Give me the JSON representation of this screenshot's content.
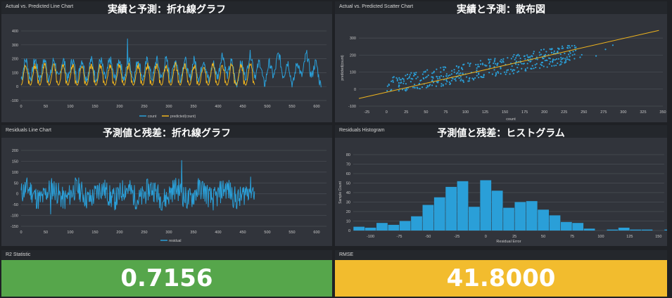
{
  "colors": {
    "actual": "#2a9fd8",
    "predicted": "#f0b51e",
    "grid": "#4a4e56",
    "axis_text": "#c8c8c8",
    "green": "#56a64b",
    "yellow": "#f2bc2e"
  },
  "panels": {
    "line": {
      "title": "Actual vs. Predicted Line Chart",
      "overlay": "実績と予測：折れ線グラフ"
    },
    "scatter": {
      "title": "Actual vs. Predicted Scatter Chart",
      "overlay": "実績と予測：散布図"
    },
    "residual_line": {
      "title": "Residuals Line Chart",
      "overlay": "予測値と残差：折れ線グラフ"
    },
    "histogram": {
      "title": "Residuals Histogram",
      "overlay": "予測値と残差：ヒストグラム"
    },
    "r2": {
      "title": "R2 Statistic",
      "value": "0.7156"
    },
    "rmse": {
      "title": "RMSE",
      "value": "41.8000"
    }
  },
  "chart_data": [
    {
      "type": "line",
      "xlim": [
        0,
        620
      ],
      "ylim": [
        -100,
        400
      ],
      "xticks": [
        0,
        50,
        100,
        150,
        200,
        250,
        300,
        350,
        400,
        450,
        500,
        550,
        600
      ],
      "yticks": [
        -100,
        0,
        100,
        200,
        300,
        400
      ],
      "series": [
        {
          "name": "count",
          "length": 610,
          "generator": "actual"
        },
        {
          "name": "predicted(count)",
          "length": 475,
          "generator": "predicted"
        }
      ]
    },
    {
      "type": "scatter",
      "xlim": [
        -35,
        350
      ],
      "ylim": [
        -100,
        350
      ],
      "xticks": [
        -25,
        0,
        25,
        50,
        75,
        100,
        125,
        150,
        175,
        200,
        225,
        250,
        275,
        300,
        325,
        350
      ],
      "yticks": [
        -100,
        0,
        100,
        200,
        300
      ],
      "xlabel": "count",
      "ylabel": "predicted(count)",
      "fit_line": {
        "x": [
          -35,
          345
        ],
        "y": [
          -55,
          345
        ]
      }
    },
    {
      "type": "line",
      "xlim": [
        0,
        620
      ],
      "ylim": [
        -150,
        200
      ],
      "xticks": [
        0,
        50,
        100,
        150,
        200,
        250,
        300,
        350,
        400,
        450,
        500,
        550,
        600
      ],
      "yticks": [
        -150,
        -100,
        -50,
        0,
        50,
        100,
        150,
        200
      ],
      "series": [
        {
          "name": "residual",
          "length": 475,
          "generator": "residual"
        }
      ]
    },
    {
      "type": "bar",
      "xlabel": "Residual Error",
      "ylabel": "Sample Count",
      "xlim": [
        -115,
        155
      ],
      "ylim": [
        0,
        80
      ],
      "xticks": [
        -100,
        -75,
        -50,
        -25,
        0,
        25,
        50,
        75,
        100,
        125,
        150
      ],
      "yticks": [
        0,
        10,
        20,
        30,
        40,
        50,
        60,
        70,
        80
      ],
      "bin_start": -115,
      "bin_width": 10,
      "values": [
        4,
        3,
        8,
        6,
        10,
        15,
        27,
        35,
        46,
        52,
        25,
        53,
        42,
        24,
        30,
        31,
        22,
        16,
        9,
        8,
        2,
        0,
        1,
        3,
        1,
        1,
        0,
        1
      ]
    }
  ]
}
